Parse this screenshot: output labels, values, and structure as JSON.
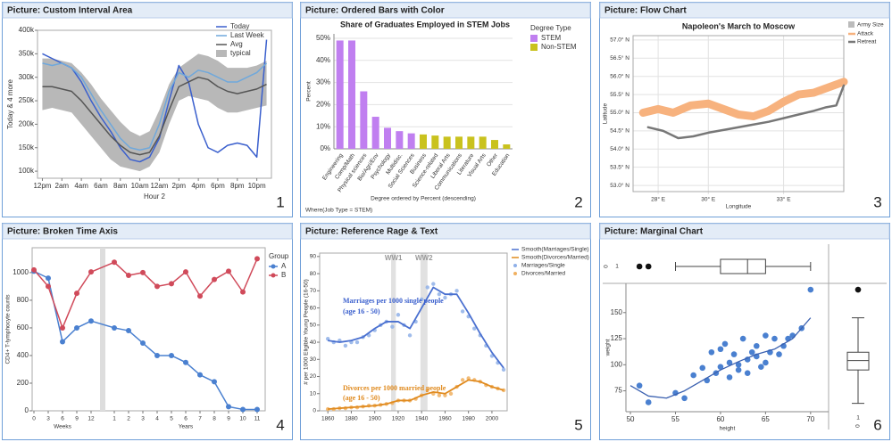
{
  "chart_data": [
    {
      "type": "area",
      "panel_title": "Picture: Custom Interval Area",
      "panel_number": "1",
      "x": [
        0,
        1,
        2,
        3,
        4,
        5,
        6,
        7,
        8,
        9,
        10,
        11,
        12,
        13,
        14,
        15,
        16,
        17,
        18,
        19,
        20,
        21,
        22,
        23
      ],
      "xlim": [
        -0.5,
        23.5
      ],
      "xticks": [
        {
          "value": 0,
          "label": "12pm"
        },
        {
          "value": 2,
          "label": "2am"
        },
        {
          "value": 4,
          "label": "4am"
        },
        {
          "value": 6,
          "label": "6am"
        },
        {
          "value": 8,
          "label": "8am"
        },
        {
          "value": 10,
          "label": "10am"
        },
        {
          "value": 12,
          "label": "12am"
        },
        {
          "value": 14,
          "label": "2pm"
        },
        {
          "value": 16,
          "label": "4pm"
        },
        {
          "value": 18,
          "label": "6pm"
        },
        {
          "value": 20,
          "label": "8pm"
        },
        {
          "value": 22,
          "label": "10pm"
        }
      ],
      "ylim": [
        85000,
        400000
      ],
      "yticks": [
        {
          "value": 100000,
          "label": "100k"
        },
        {
          "value": 150000,
          "label": "150k"
        },
        {
          "value": 200000,
          "label": "200k"
        },
        {
          "value": 250000,
          "label": "250k"
        },
        {
          "value": 300000,
          "label": "300k"
        },
        {
          "value": 350000,
          "label": "350k"
        },
        {
          "value": 400000,
          "label": "400k"
        }
      ],
      "xlabel": "Hour 2",
      "ylabel": "Today & 4 more",
      "series": [
        {
          "name": "Today",
          "color": "#3a5fcd",
          "values": [
            350000,
            340000,
            330000,
            320000,
            290000,
            250000,
            215000,
            185000,
            150000,
            125000,
            120000,
            130000,
            170000,
            250000,
            325000,
            290000,
            200000,
            150000,
            140000,
            155000,
            160000,
            155000,
            130000,
            380000
          ]
        },
        {
          "name": "Last Week",
          "color": "#6fa8dc",
          "values": [
            330000,
            325000,
            330000,
            320000,
            300000,
            265000,
            230000,
            200000,
            170000,
            150000,
            145000,
            150000,
            200000,
            270000,
            310000,
            300000,
            315000,
            310000,
            300000,
            290000,
            290000,
            300000,
            310000,
            330000
          ]
        },
        {
          "name": "Avg",
          "color": "#555555",
          "values": [
            280000,
            280000,
            275000,
            270000,
            250000,
            225000,
            200000,
            175000,
            155000,
            140000,
            135000,
            140000,
            175000,
            230000,
            280000,
            290000,
            300000,
            295000,
            280000,
            270000,
            265000,
            270000,
            275000,
            285000
          ]
        }
      ],
      "band": {
        "name": "typical",
        "color": "#b8b8b8",
        "low": [
          230000,
          235000,
          230000,
          225000,
          200000,
          175000,
          150000,
          125000,
          110000,
          105000,
          100000,
          110000,
          140000,
          200000,
          250000,
          260000,
          255000,
          250000,
          235000,
          225000,
          225000,
          230000,
          235000,
          240000
        ],
        "high": [
          340000,
          340000,
          335000,
          330000,
          310000,
          285000,
          255000,
          230000,
          205000,
          185000,
          175000,
          185000,
          230000,
          285000,
          320000,
          335000,
          350000,
          345000,
          335000,
          320000,
          320000,
          320000,
          325000,
          335000
        ]
      }
    },
    {
      "type": "bar",
      "panel_title": "Picture: Ordered Bars with Color",
      "panel_number": "2",
      "title": "Share of Graduates Employed in STEM Jobs",
      "categories": [
        "Engineering",
        "Comp/Math",
        "Physical sciences",
        "Bio/Agri/Env",
        "Psychology",
        "Multidisc.",
        "Social Sciences",
        "Business",
        "Science-related",
        "Liberal Arts",
        "Communications",
        "Literature",
        "Visual Arts",
        "Other",
        "Education"
      ],
      "legend_title": "Degree Type",
      "series": [
        {
          "name": "STEM",
          "color": "#c07ff0",
          "values": [
            49,
            49,
            26,
            14.5,
            9.5,
            8,
            7,
            null,
            null,
            null,
            null,
            null,
            null,
            null,
            null
          ]
        },
        {
          "name": "Non-STEM",
          "color": "#c9c21e",
          "values": [
            null,
            null,
            null,
            null,
            null,
            null,
            null,
            6.5,
            6,
            5.5,
            5.5,
            5.5,
            5.5,
            4,
            2
          ]
        }
      ],
      "ylim": [
        0,
        52
      ],
      "yticks": [
        {
          "value": 0,
          "label": "0%"
        },
        {
          "value": 10,
          "label": "10%"
        },
        {
          "value": 20,
          "label": "20%"
        },
        {
          "value": 30,
          "label": "30%"
        },
        {
          "value": 40,
          "label": "40%"
        },
        {
          "value": 50,
          "label": "50%"
        }
      ],
      "ylabel": "Percent",
      "xlabel": "Degree ordered by Percent (descending)",
      "footnote": "Where(Job Type = STEM)"
    },
    {
      "type": "flow",
      "panel_title": "Picture: Flow Chart",
      "panel_number": "3",
      "title": "Napoleon's March to Moscow",
      "size_legend": "Army Size",
      "xlim": [
        27,
        35.4
      ],
      "ylim": [
        52.83,
        57.12
      ],
      "xticks": [
        {
          "value": 28,
          "label": "28° E"
        },
        {
          "value": 30,
          "label": "30° E"
        },
        {
          "value": 33,
          "label": "33° E"
        }
      ],
      "yticks": [
        {
          "value": 53,
          "label": "53.0° N"
        },
        {
          "value": 53.5,
          "label": "53.5° N"
        },
        {
          "value": 54,
          "label": "54.0° N"
        },
        {
          "value": 54.5,
          "label": "54.5° N"
        },
        {
          "value": 55,
          "label": "55.0° N"
        },
        {
          "value": 55.5,
          "label": "55.5° N"
        },
        {
          "value": 56,
          "label": "56.0° N"
        },
        {
          "value": 56.5,
          "label": "56.5° N"
        },
        {
          "value": 57,
          "label": "57.0° N"
        }
      ],
      "xlabel": "Longitude",
      "ylabel": "Latitude",
      "series": [
        {
          "name": "Attack",
          "color": "#f7b27e",
          "x": [
            27.4,
            28,
            28.6,
            29.3,
            30,
            30.6,
            31.2,
            31.8,
            32.4,
            33,
            33.6,
            34.2,
            34.8,
            35.4
          ],
          "values": [
            55.0,
            55.1,
            55.0,
            55.2,
            55.25,
            55.1,
            54.95,
            54.9,
            55.05,
            55.3,
            55.5,
            55.55,
            55.7,
            55.85
          ]
        },
        {
          "name": "Retreat",
          "color": "#777777",
          "x": [
            35.4,
            35.1,
            34.7,
            34.2,
            33.6,
            33,
            32.4,
            31.6,
            30.8,
            30,
            29.4,
            28.8,
            28.2,
            27.6
          ],
          "values": [
            55.75,
            55.2,
            55.15,
            55.05,
            54.95,
            54.85,
            54.75,
            54.65,
            54.55,
            54.45,
            54.35,
            54.3,
            54.5,
            54.6
          ]
        }
      ]
    },
    {
      "type": "line",
      "panel_title": "Picture: Broken Time Axis",
      "panel_number": "4",
      "categories": [
        "0",
        "3",
        "6",
        "9",
        "12",
        "1",
        "2",
        "3",
        "4",
        "5",
        "6",
        "7",
        "8",
        "9",
        "10",
        "11"
      ],
      "break_after": 4,
      "xlabels": [
        "Weeks",
        "Years"
      ],
      "ylabel": "CD4+ T-lymphocyte counts",
      "legend_title": "Group",
      "ylim": [
        0,
        1180
      ],
      "yticks": [
        0,
        200,
        400,
        600,
        800,
        1000
      ],
      "series": [
        {
          "name": "A",
          "color": "#4a80d0",
          "values": [
            1010,
            960,
            500,
            600,
            650,
            600,
            580,
            490,
            400,
            400,
            350,
            260,
            210,
            30,
            10,
            10
          ]
        },
        {
          "name": "B",
          "color": "#d04a5a",
          "values": [
            1020,
            900,
            600,
            850,
            1005,
            1075,
            980,
            1000,
            900,
            920,
            1005,
            830,
            950,
            1010,
            860,
            1100
          ]
        }
      ]
    },
    {
      "type": "scatter",
      "panel_title": "Picture: Reference Rage & Text",
      "panel_number": "5",
      "xlim": [
        1853,
        2013
      ],
      "ylim": [
        0,
        92
      ],
      "xticks": [
        1860,
        1880,
        1900,
        1920,
        1940,
        1960,
        1980,
        2000
      ],
      "yticks": [
        0,
        10,
        20,
        30,
        40,
        50,
        60,
        70,
        80,
        90
      ],
      "ylabel": "# per 1000 Eligible Young People (16-50)",
      "ref_ranges": [
        {
          "label": "WW1",
          "range": [
            1914,
            1918
          ]
        },
        {
          "label": "WW2",
          "range": [
            1939,
            1945
          ]
        }
      ],
      "annotations": [
        {
          "lines": [
            "Marriages per 1000 single people",
            "(age 16 - 50)"
          ],
          "color": "#3a5fcd"
        },
        {
          "lines": [
            "Divorces per 1000 married people",
            "(age 16 - 50)"
          ],
          "color": "#e08a1e"
        }
      ],
      "series": [
        {
          "name": "Smooth(Marriages/Single)",
          "color": "#4a70d0",
          "kind": "line",
          "x": [
            1860,
            1870,
            1880,
            1890,
            1900,
            1910,
            1920,
            1930,
            1940,
            1950,
            1960,
            1970,
            1980,
            1990,
            2000,
            2010
          ],
          "values": [
            41,
            40,
            41,
            43,
            48,
            52,
            52,
            48,
            60,
            72,
            68,
            68,
            57,
            45,
            34,
            25
          ]
        },
        {
          "name": "Smooth(Divorces/Married)",
          "color": "#e08a1e",
          "kind": "line",
          "x": [
            1860,
            1870,
            1880,
            1890,
            1900,
            1910,
            1920,
            1930,
            1940,
            1950,
            1960,
            1970,
            1980,
            1990,
            2000,
            2010
          ],
          "values": [
            1,
            1.5,
            2,
            2.5,
            3,
            4,
            6,
            6,
            9,
            11,
            10,
            14,
            18,
            17,
            14,
            12
          ]
        },
        {
          "name": "Marriages/Single",
          "color": "#8fb0e8",
          "kind": "points",
          "x": [
            1860,
            1865,
            1870,
            1875,
            1880,
            1885,
            1890,
            1895,
            1900,
            1905,
            1910,
            1915,
            1920,
            1925,
            1930,
            1935,
            1940,
            1945,
            1950,
            1955,
            1960,
            1965,
            1970,
            1975,
            1980,
            1985,
            1990,
            1995,
            2000,
            2005,
            2010
          ],
          "values": [
            42,
            40,
            41,
            38,
            40,
            40,
            43,
            44,
            47,
            50,
            52,
            49,
            56,
            50,
            44,
            52,
            65,
            72,
            74,
            68,
            66,
            68,
            70,
            58,
            55,
            48,
            44,
            38,
            32,
            28,
            24
          ]
        },
        {
          "name": "Divorces/Married",
          "color": "#f0b060",
          "kind": "points",
          "x": [
            1860,
            1865,
            1870,
            1875,
            1880,
            1885,
            1890,
            1895,
            1900,
            1905,
            1910,
            1915,
            1920,
            1925,
            1930,
            1935,
            1940,
            1945,
            1950,
            1955,
            1960,
            1965,
            1970,
            1975,
            1980,
            1985,
            1990,
            1995,
            2000,
            2005,
            2010
          ],
          "values": [
            1,
            1,
            1.5,
            1.5,
            2,
            2,
            2.5,
            3,
            3,
            3.5,
            4,
            4.5,
            6,
            6,
            6,
            7,
            9,
            12,
            10,
            9,
            9,
            10,
            14,
            18,
            19,
            18,
            17,
            15,
            14,
            13,
            12
          ]
        }
      ]
    },
    {
      "type": "marginal",
      "panel_title": "Picture: Marginal Chart",
      "panel_number": "6",
      "xlim": [
        49.5,
        72
      ],
      "ylim": [
        55,
        178
      ],
      "xticks": [
        50,
        55,
        60,
        65,
        70
      ],
      "yticks": [
        75,
        100,
        125,
        150
      ],
      "xlabel": "height",
      "ylabel": "weight",
      "box_labels": [
        "1",
        "0"
      ],
      "color": "#4a80d0",
      "x": [
        51,
        52,
        55,
        56,
        57,
        58,
        58.5,
        59,
        59.5,
        60,
        60,
        60.5,
        61,
        61,
        61.5,
        62,
        62,
        62.5,
        63,
        63,
        63.5,
        64,
        64,
        64.5,
        65,
        65,
        65.5,
        66,
        66.5,
        67,
        67.5,
        68,
        69,
        70
      ],
      "values": [
        80,
        64,
        73,
        68,
        90,
        97,
        85,
        112,
        92,
        115,
        98,
        120,
        102,
        88,
        110,
        100,
        95,
        125,
        105,
        92,
        112,
        118,
        108,
        98,
        128,
        102,
        112,
        125,
        110,
        118,
        125,
        128,
        135,
        172
      ],
      "smooth": {
        "x": [
          50,
          52,
          54,
          56,
          58,
          60,
          62,
          64,
          66,
          68,
          70
        ],
        "values": [
          80,
          70,
          68,
          75,
          85,
          95,
          103,
          110,
          115,
          125,
          145
        ]
      },
      "top_box": {
        "values": [
          55,
          60,
          63,
          65,
          70
        ],
        "outliers": [
          51,
          52
        ]
      },
      "right_box": {
        "values": [
          63,
          95,
          104,
          112,
          145
        ],
        "outliers": [
          172
        ]
      }
    }
  ]
}
